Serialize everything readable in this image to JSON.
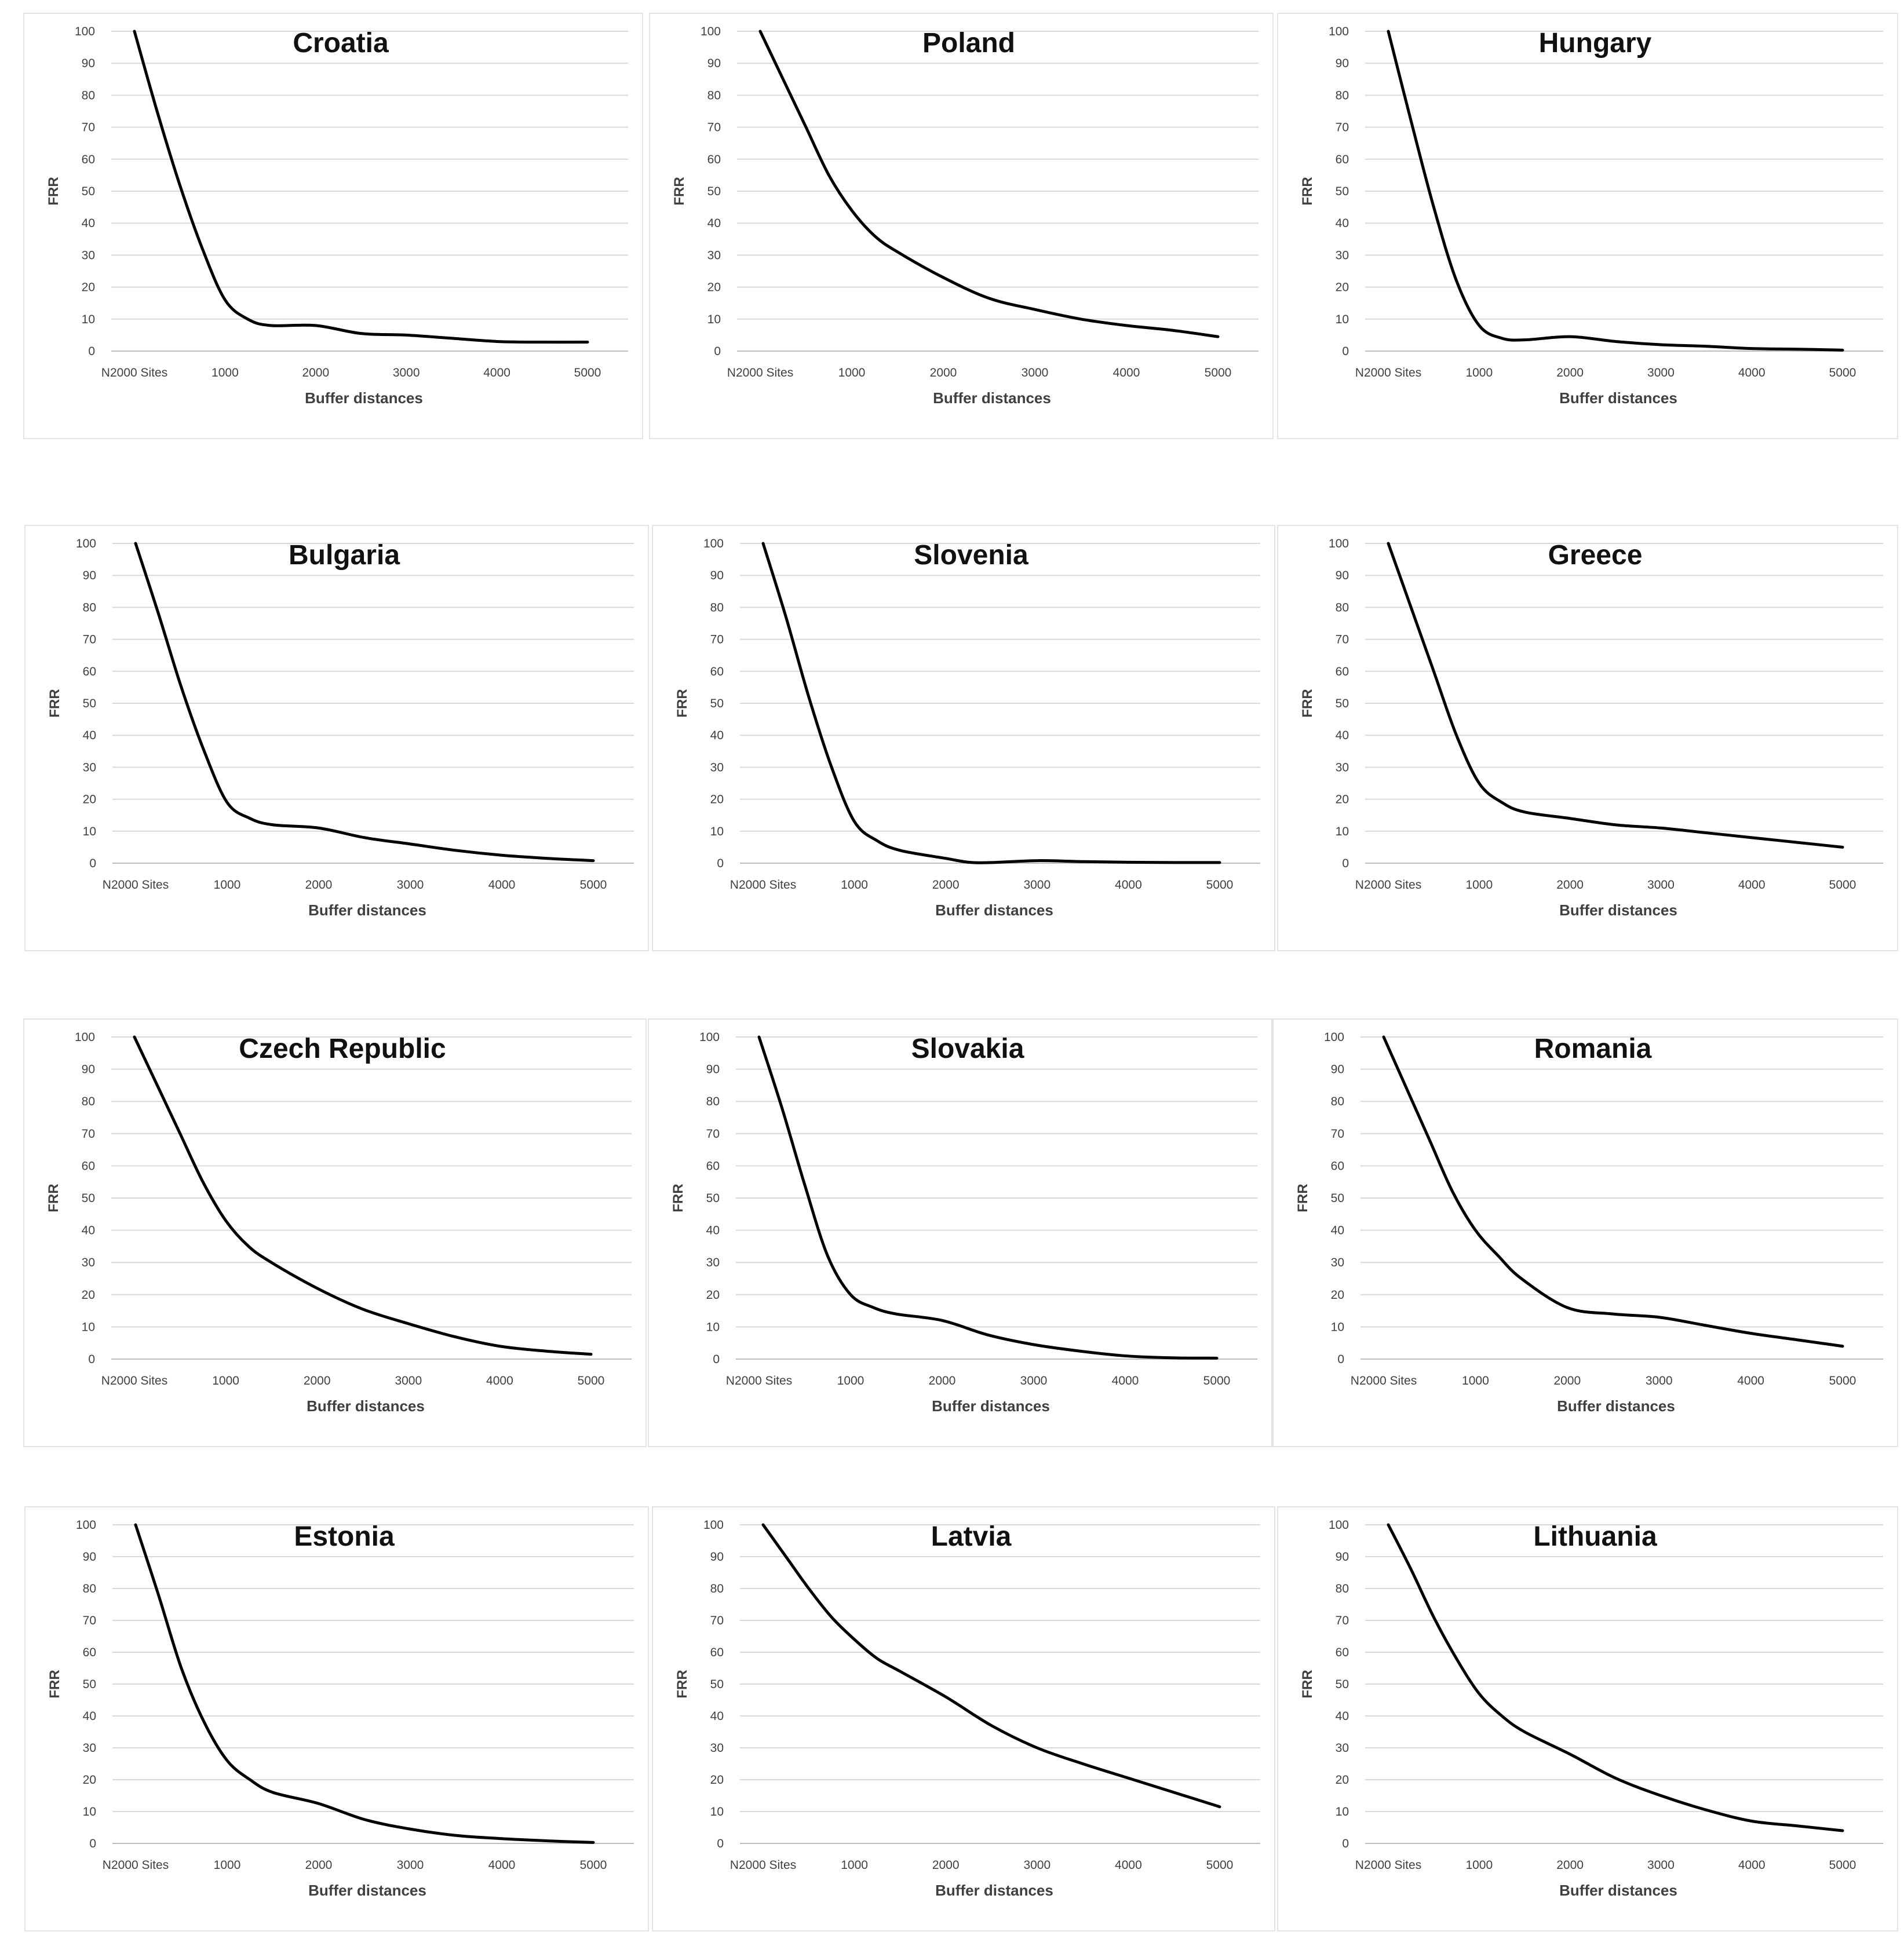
{
  "chart_data": [
    {
      "type": "line",
      "title": "Croatia",
      "xlabel": "Buffer distances",
      "ylabel": "FRR",
      "categories": [
        "N2000 Sites",
        "1000",
        "2000",
        "3000",
        "4000",
        "5000"
      ],
      "ylim": [
        0,
        100
      ],
      "yticks": [
        0,
        10,
        20,
        30,
        40,
        50,
        60,
        70,
        80,
        90,
        100
      ],
      "series": [
        {
          "name": "FRR",
          "x": [
            0,
            250,
            500,
            750,
            1000,
            1250,
            1500,
            2000,
            2500,
            3000,
            3500,
            4000,
            4500,
            5000
          ],
          "values": [
            100,
            75,
            52,
            32,
            16,
            10,
            8,
            8,
            5.5,
            5,
            4,
            3,
            2.8,
            2.8
          ]
        }
      ]
    },
    {
      "type": "line",
      "title": "Poland",
      "xlabel": "Buffer distances",
      "ylabel": "FRR",
      "categories": [
        "N2000 Sites",
        "1000",
        "2000",
        "3000",
        "4000",
        "5000"
      ],
      "ylim": [
        0,
        100
      ],
      "yticks": [
        0,
        10,
        20,
        30,
        40,
        50,
        60,
        70,
        80,
        90,
        100
      ],
      "series": [
        {
          "name": "FRR",
          "x": [
            0,
            250,
            500,
            750,
            1000,
            1250,
            1500,
            2000,
            2500,
            3000,
            3500,
            4000,
            4500,
            5000
          ],
          "values": [
            100,
            85,
            70,
            55,
            44,
            36,
            31,
            23,
            16.5,
            13,
            10,
            8,
            6.5,
            4.5
          ]
        }
      ]
    },
    {
      "type": "line",
      "title": "Hungary",
      "xlabel": "Buffer distances",
      "ylabel": "FRR",
      "categories": [
        "N2000 Sites",
        "1000",
        "2000",
        "3000",
        "4000",
        "5000"
      ],
      "ylim": [
        0,
        100
      ],
      "yticks": [
        0,
        10,
        20,
        30,
        40,
        50,
        60,
        70,
        80,
        90,
        100
      ],
      "series": [
        {
          "name": "FRR",
          "x": [
            0,
            250,
            500,
            750,
            1000,
            1250,
            1500,
            2000,
            2500,
            3000,
            3500,
            4000,
            4500,
            5000
          ],
          "values": [
            100,
            72,
            45,
            22,
            8,
            4,
            3.5,
            4.5,
            3,
            2,
            1.5,
            0.8,
            0.6,
            0.3
          ]
        }
      ]
    },
    {
      "type": "line",
      "title": "Bulgaria",
      "xlabel": "Buffer distances",
      "ylabel": "FRR",
      "categories": [
        "N2000 Sites",
        "1000",
        "2000",
        "3000",
        "4000",
        "5000"
      ],
      "ylim": [
        0,
        100
      ],
      "yticks": [
        0,
        10,
        20,
        30,
        40,
        50,
        60,
        70,
        80,
        90,
        100
      ],
      "series": [
        {
          "name": "FRR",
          "x": [
            0,
            250,
            500,
            750,
            1000,
            1250,
            1500,
            2000,
            2500,
            3000,
            3500,
            4000,
            4500,
            5000
          ],
          "values": [
            100,
            78,
            55,
            35,
            19,
            14,
            12,
            11,
            8,
            6,
            4,
            2.5,
            1.5,
            0.8
          ]
        }
      ]
    },
    {
      "type": "line",
      "title": "Slovenia",
      "xlabel": "Buffer distances",
      "ylabel": "FRR",
      "categories": [
        "N2000 Sites",
        "1000",
        "2000",
        "3000",
        "4000",
        "5000"
      ],
      "ylim": [
        0,
        100
      ],
      "yticks": [
        0,
        10,
        20,
        30,
        40,
        50,
        60,
        70,
        80,
        90,
        100
      ],
      "series": [
        {
          "name": "FRR",
          "x": [
            0,
            250,
            500,
            750,
            1000,
            1250,
            1500,
            2000,
            2250,
            2500,
            3000,
            3500,
            4000,
            4500,
            5000
          ],
          "values": [
            100,
            77,
            52,
            30,
            13,
            7,
            4,
            1.5,
            0.3,
            0.2,
            0.8,
            0.5,
            0.3,
            0.2,
            0.2
          ]
        }
      ]
    },
    {
      "type": "line",
      "title": "Greece",
      "xlabel": "Buffer distances",
      "ylabel": "FRR",
      "categories": [
        "N2000 Sites",
        "1000",
        "2000",
        "3000",
        "4000",
        "5000"
      ],
      "ylim": [
        0,
        100
      ],
      "yticks": [
        0,
        10,
        20,
        30,
        40,
        50,
        60,
        70,
        80,
        90,
        100
      ],
      "series": [
        {
          "name": "FRR",
          "x": [
            0,
            250,
            500,
            750,
            1000,
            1250,
            1500,
            2000,
            2500,
            3000,
            3500,
            4000,
            4500,
            5000
          ],
          "values": [
            100,
            80,
            60,
            40,
            25,
            19,
            16,
            14,
            12,
            11,
            9.5,
            8,
            6.5,
            5
          ]
        }
      ]
    },
    {
      "type": "line",
      "title": "Czech Republic",
      "xlabel": "Buffer distances",
      "ylabel": "FRR",
      "categories": [
        "N2000 Sites",
        "1000",
        "2000",
        "3000",
        "4000",
        "5000"
      ],
      "ylim": [
        0,
        100
      ],
      "yticks": [
        0,
        10,
        20,
        30,
        40,
        50,
        60,
        70,
        80,
        90,
        100
      ],
      "series": [
        {
          "name": "FRR",
          "x": [
            0,
            250,
            500,
            750,
            1000,
            1250,
            1500,
            2000,
            2500,
            3000,
            3500,
            4000,
            4500,
            5000
          ],
          "values": [
            100,
            85,
            70,
            55,
            43,
            35,
            30,
            22,
            15.5,
            11,
            7,
            4,
            2.5,
            1.5
          ]
        }
      ]
    },
    {
      "type": "line",
      "title": "Slovakia",
      "xlabel": "Buffer distances",
      "ylabel": "FRR",
      "categories": [
        "N2000 Sites",
        "1000",
        "2000",
        "3000",
        "4000",
        "5000"
      ],
      "ylim": [
        0,
        100
      ],
      "yticks": [
        0,
        10,
        20,
        30,
        40,
        50,
        60,
        70,
        80,
        90,
        100
      ],
      "series": [
        {
          "name": "FRR",
          "x": [
            0,
            250,
            500,
            750,
            1000,
            1250,
            1500,
            2000,
            2500,
            3000,
            3500,
            4000,
            4500,
            5000
          ],
          "values": [
            100,
            78,
            54,
            32,
            20,
            16,
            14,
            12,
            7.5,
            4.5,
            2.5,
            1,
            0.4,
            0.3
          ]
        }
      ]
    },
    {
      "type": "line",
      "title": "Romania",
      "xlabel": "Buffer distances",
      "ylabel": "FRR",
      "categories": [
        "N2000 Sites",
        "1000",
        "2000",
        "3000",
        "4000",
        "5000"
      ],
      "ylim": [
        0,
        100
      ],
      "yticks": [
        0,
        10,
        20,
        30,
        40,
        50,
        60,
        70,
        80,
        90,
        100
      ],
      "series": [
        {
          "name": "FRR",
          "x": [
            0,
            250,
            500,
            750,
            1000,
            1250,
            1500,
            2000,
            2500,
            3000,
            3500,
            4000,
            4500,
            5000
          ],
          "values": [
            100,
            84,
            68,
            52,
            40,
            32,
            25,
            16,
            14,
            13,
            10.5,
            8,
            6,
            4
          ]
        }
      ]
    },
    {
      "type": "line",
      "title": "Estonia",
      "xlabel": "Buffer distances",
      "ylabel": "FRR",
      "categories": [
        "N2000 Sites",
        "1000",
        "2000",
        "3000",
        "4000",
        "5000"
      ],
      "ylim": [
        0,
        100
      ],
      "yticks": [
        0,
        10,
        20,
        30,
        40,
        50,
        60,
        70,
        80,
        90,
        100
      ],
      "series": [
        {
          "name": "FRR",
          "x": [
            0,
            250,
            500,
            750,
            1000,
            1250,
            1500,
            2000,
            2500,
            3000,
            3500,
            4000,
            4500,
            5000
          ],
          "values": [
            100,
            78,
            55,
            38,
            26,
            20,
            16,
            12.5,
            7.5,
            4.5,
            2.5,
            1.5,
            0.8,
            0.3
          ]
        }
      ]
    },
    {
      "type": "line",
      "title": "Latvia",
      "xlabel": "Buffer distances",
      "ylabel": "FRR",
      "categories": [
        "N2000 Sites",
        "1000",
        "2000",
        "3000",
        "4000",
        "5000"
      ],
      "ylim": [
        0,
        100
      ],
      "yticks": [
        0,
        10,
        20,
        30,
        40,
        50,
        60,
        70,
        80,
        90,
        100
      ],
      "series": [
        {
          "name": "FRR",
          "x": [
            0,
            250,
            500,
            750,
            1000,
            1250,
            1500,
            2000,
            2500,
            3000,
            3500,
            4000,
            4500,
            5000
          ],
          "values": [
            100,
            90,
            80,
            71,
            64,
            58,
            54,
            46,
            37,
            30,
            25,
            20.5,
            16,
            11.5
          ]
        }
      ]
    },
    {
      "type": "line",
      "title": "Lithuania",
      "xlabel": "Buffer distances",
      "ylabel": "FRR",
      "categories": [
        "N2000 Sites",
        "1000",
        "2000",
        "3000",
        "4000",
        "5000"
      ],
      "ylim": [
        0,
        100
      ],
      "yticks": [
        0,
        10,
        20,
        30,
        40,
        50,
        60,
        70,
        80,
        90,
        100
      ],
      "series": [
        {
          "name": "FRR",
          "x": [
            0,
            250,
            500,
            750,
            1000,
            1250,
            1500,
            2000,
            2500,
            3000,
            3500,
            4000,
            4500,
            5000
          ],
          "values": [
            100,
            86,
            71,
            58,
            47,
            40,
            35,
            28,
            20.5,
            15,
            10.5,
            7,
            5.5,
            4
          ]
        }
      ]
    }
  ]
}
